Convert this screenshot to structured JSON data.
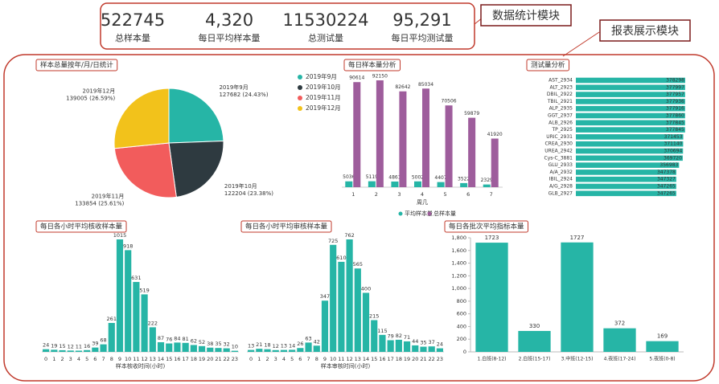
{
  "kpis": [
    {
      "value": "522745",
      "label": "总样本量"
    },
    {
      "value": "4,320",
      "label": "每日平均样本量"
    },
    {
      "value": "11530224",
      "label": "总测试量"
    },
    {
      "value": "95,291",
      "label": "每日平均测试量"
    }
  ],
  "callouts": [
    "数据统计模块",
    "报表展示模块"
  ],
  "chart_data": [
    {
      "type": "pie",
      "title": "样本总量按年/月/日统计",
      "categories": [
        "2019年9月",
        "2019年10月",
        "2019年11月",
        "2019年12月"
      ],
      "values": [
        127682,
        122204,
        133854,
        139005
      ],
      "value_labels": [
        "127682 (24.43%)",
        "122204 (23.38%)",
        "133854 (25.61%)",
        "139005 (26.59%)"
      ],
      "colors": [
        "#26b5a6",
        "#2e3a40",
        "#f25c5c",
        "#f2c21b"
      ]
    },
    {
      "type": "bar",
      "title": "每日样本量分析",
      "x_label": "周几",
      "categories": [
        "1",
        "2",
        "3",
        "4",
        "5",
        "6",
        "7"
      ],
      "series": [
        {
          "name": "平均样本量",
          "color": "#26b5a6",
          "values": [
            5036,
            5119,
            4861,
            5002,
            4407,
            3522,
            2329
          ]
        },
        {
          "name": "总样本量",
          "color": "#9e5d9c",
          "values": [
            90614,
            92150,
            82642,
            85034,
            70506,
            59879,
            41920
          ]
        }
      ]
    },
    {
      "type": "hbar",
      "title": "测试量分析",
      "color": "#26b5a6",
      "categories": [
        "AST_2934",
        "ALT_2923",
        "DBIL_2922",
        "TBIL_2921",
        "ALP_2935",
        "GGT_2937",
        "ALB_2926",
        "TP_2925",
        "URIC_2931",
        "CREA_2930",
        "UREA_2942",
        "Cys-C_3881",
        "GLU_2933",
        "A/A_2932",
        "IBIL_2924",
        "A/G_2928",
        "GLB_2927"
      ],
      "values": [
        378298,
        377997,
        377957,
        377936,
        377916,
        377860,
        377845,
        377845,
        371453,
        371140,
        370694,
        369720,
        356983,
        347378,
        347327,
        347265,
        347265
      ]
    },
    {
      "type": "column",
      "title": "每日各小时平均核收样本量",
      "x_label": "样本核收时间(小时)",
      "color": "#26b5a6",
      "categories": [
        "0",
        "1",
        "2",
        "3",
        "4",
        "5",
        "6",
        "7",
        "8",
        "9",
        "10",
        "11",
        "12",
        "13",
        "14",
        "15",
        "16",
        "17",
        "18",
        "19",
        "20",
        "21",
        "22",
        "23"
      ],
      "values": [
        24,
        19,
        15,
        12,
        11,
        16,
        39,
        68,
        261,
        1015,
        918,
        631,
        519,
        222,
        87,
        76,
        84,
        81,
        62,
        52,
        38,
        35,
        32,
        10
      ]
    },
    {
      "type": "column",
      "title": "每日各小时平均审核样本量",
      "x_label": "样本审核时间(小时)",
      "color": "#26b5a6",
      "categories": [
        "0",
        "1",
        "2",
        "3",
        "4",
        "5",
        "6",
        "7",
        "8",
        "9",
        "10",
        "11",
        "12",
        "13",
        "14",
        "15",
        "16",
        "17",
        "18",
        "19",
        "20",
        "21",
        "22",
        "23"
      ],
      "values": [
        13,
        21,
        18,
        12,
        13,
        14,
        26,
        63,
        42,
        347,
        725,
        610,
        762,
        565,
        400,
        215,
        115,
        79,
        82,
        71,
        44,
        35,
        37,
        24
      ]
    },
    {
      "type": "axisbar",
      "title": "每日各批次平均指标本量",
      "color": "#26b5a6",
      "categories": [
        "1.白班(8-12)",
        "2.白班(15-17)",
        "3.中班(12-15)",
        "4.夜班(17-24)",
        "5.夜班(0-8)"
      ],
      "values": [
        1723,
        330,
        1727,
        372,
        169
      ],
      "ylim": [
        0,
        1800
      ],
      "yticks": [
        0,
        {
          "value": 200,
          "label": "200"
        },
        400,
        600,
        800,
        {
          "value": 1000,
          "label": "1,000"
        },
        {
          "value": 1200,
          "label": "1,200"
        },
        {
          "value": 1400,
          "label": "1,400"
        },
        {
          "value": 1600,
          "label": "1,600"
        },
        {
          "value": 1800,
          "label": "1,800"
        }
      ]
    }
  ]
}
